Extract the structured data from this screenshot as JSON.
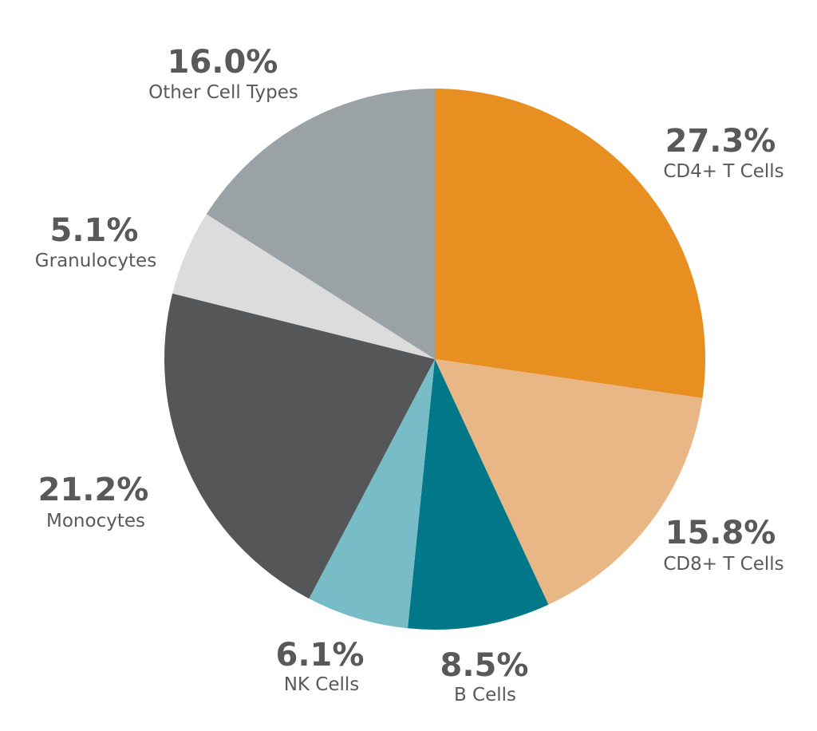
{
  "chart_data": {
    "type": "pie",
    "title": "",
    "slices": [
      {
        "label": "CD4+ T Cells",
        "value": 27.3,
        "value_label": "27.3%",
        "color": "#e88f22"
      },
      {
        "label": "CD8+ T Cells",
        "value": 15.8,
        "value_label": "15.8%",
        "color": "#e9b786"
      },
      {
        "label": "B Cells",
        "value": 8.5,
        "value_label": "8.5%",
        "color": "#00788a"
      },
      {
        "label": "NK Cells",
        "value": 6.1,
        "value_label": "6.1%",
        "color": "#77bcc7"
      },
      {
        "label": "Monocytes",
        "value": 21.2,
        "value_label": "21.2%",
        "color": "#545658"
      },
      {
        "label": "Granulocytes",
        "value": 5.1,
        "value_label": "5.1%",
        "color": "#dcdcdc"
      },
      {
        "label": "Other Cell Types",
        "value": 16.0,
        "value_label": "16.0%",
        "color": "#9ba2a6"
      }
    ],
    "start_angle": "12 o'clock",
    "direction": "clockwise",
    "legend": "none"
  }
}
